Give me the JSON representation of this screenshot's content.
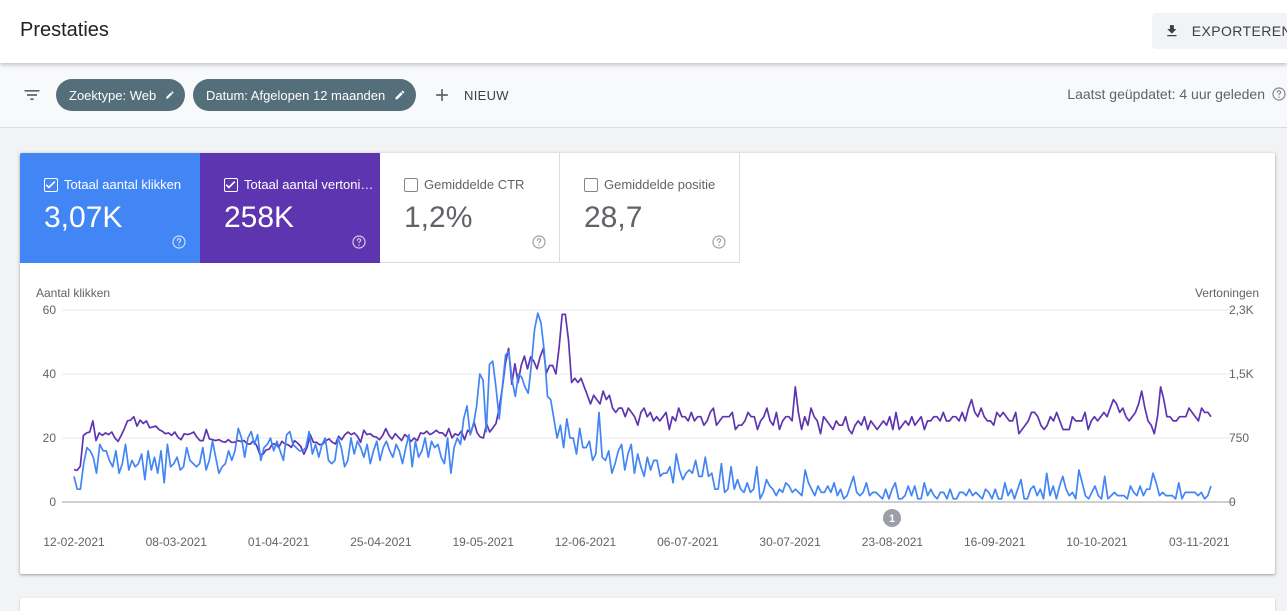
{
  "header": {
    "title": "Prestaties",
    "export_label": "EXPORTEREN",
    "export_icon": "download-icon"
  },
  "filters": {
    "chips": [
      {
        "label": "Zoektype: Web",
        "icon": "pencil-icon"
      },
      {
        "label": "Datum: Afgelopen 12 maanden",
        "icon": "pencil-icon"
      }
    ],
    "new_label": "NIEUW",
    "updated": "Laatst geüpdatet: 4 uur geleden"
  },
  "metrics": [
    {
      "label": "Totaal aantal klikken",
      "value": "3,07K",
      "checked": true,
      "color": "#4285f4"
    },
    {
      "label": "Totaal aantal vertoningen",
      "value": "258K",
      "checked": true,
      "color": "#5e35b1"
    },
    {
      "label": "Gemiddelde CTR",
      "value": "1,2%",
      "checked": false,
      "color": "#ffffff"
    },
    {
      "label": "Gemiddelde positie",
      "value": "28,7",
      "checked": false,
      "color": "#ffffff"
    }
  ],
  "chart_data": {
    "type": "line",
    "ylabel_left": "Aantal klikken",
    "ylabel_right": "Vertoningen",
    "y_ticks_left": [
      "60",
      "40",
      "20",
      "0"
    ],
    "y_ticks_right": [
      "2,3K",
      "1,5K",
      "750",
      "0"
    ],
    "ylim_left": [
      0,
      60
    ],
    "ylim_right": [
      0,
      2250
    ],
    "x_ticks": [
      "12-02-2021",
      "08-03-2021",
      "01-04-2021",
      "25-04-2021",
      "19-05-2021",
      "12-06-2021",
      "06-07-2021",
      "30-07-2021",
      "23-08-2021",
      "16-09-2021",
      "10-10-2021",
      "03-11-2021"
    ],
    "annotation": "1",
    "grid": true,
    "series": [
      {
        "name": "Totaal aantal klikken",
        "color": "#4285f4",
        "axis": "left",
        "values": [
          8,
          4,
          4,
          12,
          17,
          16,
          14,
          9,
          18,
          16,
          16,
          13,
          11,
          16,
          9,
          12,
          18,
          10,
          13,
          11,
          12,
          15,
          7,
          16,
          10,
          14,
          9,
          16,
          6,
          18,
          11,
          12,
          14,
          10,
          11,
          17,
          13,
          12,
          11,
          12,
          17,
          10,
          13,
          19,
          14,
          9,
          11,
          12,
          16,
          13,
          16,
          23,
          20,
          14,
          20,
          22,
          18,
          21,
          13,
          17,
          18,
          20,
          16,
          19,
          16,
          13,
          21,
          22,
          18,
          17,
          16,
          16,
          17,
          22,
          15,
          18,
          14,
          18,
          20,
          13,
          12,
          13,
          20,
          17,
          11,
          13,
          20,
          15,
          19,
          17,
          14,
          18,
          12,
          16,
          19,
          13,
          17,
          19,
          16,
          14,
          18,
          16,
          12,
          17,
          21,
          11,
          19,
          14,
          16,
          20,
          14,
          19,
          17,
          18,
          14,
          12,
          20,
          9,
          17,
          20,
          18,
          26,
          30,
          21,
          24,
          30,
          40,
          38,
          22,
          43,
          44,
          36,
          26,
          36,
          46,
          47,
          38,
          33,
          40,
          39,
          36,
          34,
          43,
          54,
          59,
          56,
          47,
          33,
          32,
          26,
          20,
          24,
          17,
          26,
          20,
          20,
          15,
          23,
          17,
          17,
          19,
          13,
          15,
          28,
          14,
          13,
          16,
          9,
          12,
          16,
          18,
          10,
          15,
          18,
          9,
          15,
          11,
          8,
          14,
          10,
          13,
          13,
          8,
          9,
          9,
          11,
          6,
          15,
          10,
          7,
          9,
          10,
          9,
          13,
          8,
          8,
          14,
          8,
          9,
          4,
          4,
          12,
          3,
          4,
          11,
          4,
          7,
          4,
          3,
          6,
          3,
          4,
          11,
          1,
          3,
          7,
          5,
          4,
          2,
          4,
          3,
          6,
          5,
          3,
          4,
          3,
          2,
          10,
          6,
          4,
          2,
          5,
          3,
          3,
          5,
          3,
          6,
          2,
          4,
          1,
          2,
          5,
          8,
          3,
          2,
          3,
          6,
          2,
          3,
          3,
          2,
          1,
          4,
          1,
          4,
          6,
          1,
          1,
          2,
          5,
          2,
          5,
          1,
          1,
          6,
          2,
          4,
          2,
          1,
          3,
          3,
          1,
          4,
          1,
          1,
          3,
          3,
          2,
          4,
          2,
          3,
          2,
          1,
          4,
          3,
          1,
          4,
          1,
          1,
          6,
          2,
          4,
          1,
          4,
          7,
          1,
          1,
          4,
          5,
          2,
          4,
          1,
          9,
          2,
          5,
          1,
          5,
          8,
          4,
          2,
          3,
          1,
          10,
          6,
          2,
          1,
          3,
          5,
          2,
          1,
          8,
          1,
          2,
          3,
          2,
          2,
          2,
          1,
          5,
          3,
          2,
          5,
          2,
          4,
          4,
          9,
          6,
          2,
          3,
          2,
          2,
          2,
          1,
          6,
          1,
          3,
          3,
          3,
          3,
          2,
          3,
          1,
          2,
          5
        ]
      },
      {
        "name": "Totaal aantal vertoningen",
        "color": "#5e35b1",
        "axis": "right",
        "values": [
          380,
          370,
          420,
          780,
          810,
          820,
          950,
          720,
          810,
          780,
          810,
          790,
          820,
          750,
          710,
          780,
          860,
          950,
          960,
          1000,
          890,
          960,
          920,
          950,
          870,
          880,
          890,
          850,
          830,
          800,
          810,
          780,
          820,
          760,
          730,
          800,
          790,
          800,
          820,
          760,
          720,
          720,
          850,
          740,
          730,
          720,
          730,
          710,
          700,
          730,
          700,
          700,
          720,
          710,
          720,
          680,
          680,
          720,
          660,
          560,
          560,
          610,
          620,
          680,
          680,
          640,
          710,
          680,
          670,
          640,
          720,
          690,
          650,
          560,
          640,
          790,
          700,
          700,
          670,
          680,
          720,
          740,
          700,
          680,
          770,
          730,
          790,
          820,
          790,
          810,
          770,
          700,
          840,
          790,
          800,
          770,
          760,
          730,
          780,
          860,
          780,
          740,
          800,
          760,
          720,
          790,
          760,
          710,
          750,
          720,
          810,
          800,
          830,
          790,
          810,
          840,
          810,
          810,
          770,
          860,
          750,
          800,
          780,
          830,
          730,
          840,
          810,
          940,
          810,
          760,
          750,
          920,
          820,
          870,
          920,
          1100,
          1330,
          1630,
          1800,
          1380,
          1620,
          1400,
          1600,
          1710,
          1560,
          1700,
          1650,
          1560,
          1700,
          1800,
          1510,
          1600,
          1600,
          1500,
          1800,
          2200,
          2200,
          1900,
          1400,
          1450,
          1400,
          1450,
          1350,
          1250,
          1150,
          1250,
          1200,
          1150,
          1300,
          1200,
          1250,
          1100,
          1050,
          1100,
          1100,
          1000,
          1100,
          1050,
          1000,
          900,
          1050,
          1100,
          1000,
          1050,
          950,
          1000,
          950,
          1000,
          1050,
          850,
          1000,
          950,
          1100,
          1000,
          1000,
          950,
          1050,
          950,
          1000,
          1000,
          900,
          950,
          1050,
          1100,
          900,
          950,
          1000,
          1000,
          1000,
          1050,
          850,
          900,
          900,
          950,
          1050,
          1000,
          1000,
          850,
          950,
          1000,
          1100,
          950,
          900,
          1050,
          850,
          950,
          1000,
          1000,
          950,
          1350,
          1050,
          850,
          1000,
          900,
          1100,
          1000,
          950,
          800,
          1000,
          950,
          900,
          850,
          950,
          900,
          900,
          1000,
          850,
          800,
          900,
          950,
          900,
          1000,
          850,
          950,
          900,
          850,
          900,
          950,
          900,
          1000,
          850,
          1050,
          850,
          900,
          950,
          900,
          1000,
          900,
          950,
          1000,
          850,
          950,
          950,
          1000,
          1000,
          950,
          1050,
          950,
          950,
          1000,
          1000,
          950,
          1050,
          950,
          1100,
          1200,
          1050,
          1000,
          1100,
          1000,
          950,
          950,
          900,
          1050,
          1000,
          1050,
          1000,
          950,
          950,
          1050,
          800,
          850,
          900,
          950,
          1050,
          1050,
          1000,
          900,
          850,
          900,
          1000,
          950,
          1050,
          950,
          850,
          850,
          850,
          1000,
          950,
          950,
          950,
          1050,
          850,
          950,
          1000,
          950,
          1000,
          1050,
          1000,
          1100,
          1200,
          1150,
          1050,
          1100,
          1000,
          950,
          1000,
          1050,
          1150,
          1300,
          1100,
          950,
          900,
          800,
          1000,
          1350,
          1200,
          1000,
          1000,
          950,
          950,
          1000,
          1000,
          1000,
          1100,
          1050,
          1000,
          950,
          1100,
          1050,
          1050,
          1000
        ]
      }
    ]
  }
}
